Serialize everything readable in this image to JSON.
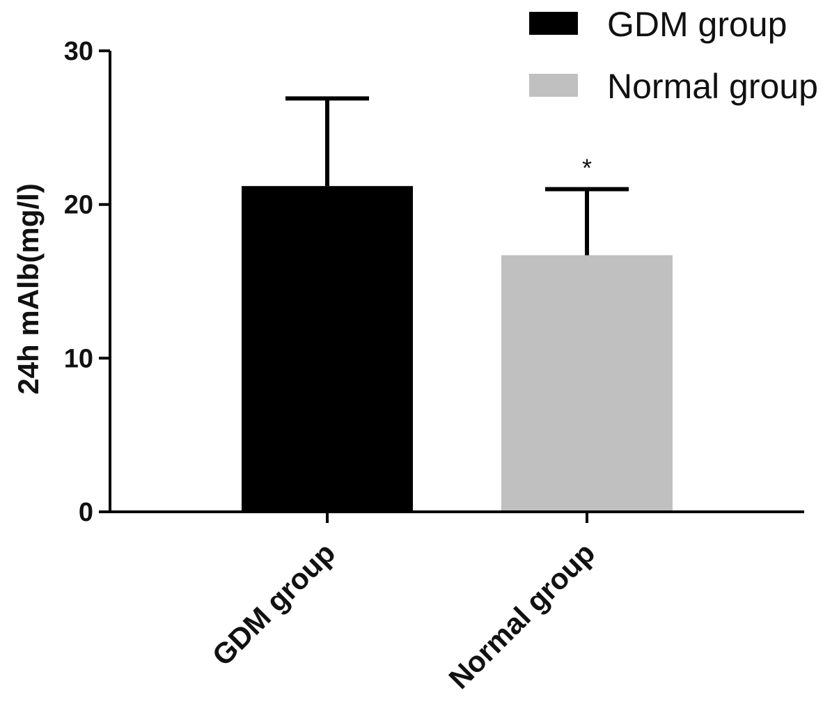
{
  "chart_data": {
    "type": "bar",
    "title": "",
    "xlabel": "",
    "ylabel": "24h mAlb(mg/l)",
    "ylim": [
      0,
      30
    ],
    "yticks": [
      0,
      10,
      20,
      30
    ],
    "categories": [
      "GDM group",
      "Normal group"
    ],
    "values": [
      21.2,
      16.7
    ],
    "error_upper": [
      26.9,
      21.0
    ],
    "annotations": [
      "",
      "*"
    ],
    "colors": [
      "#000000",
      "#c0c0c0"
    ],
    "grid": false,
    "legend": {
      "placement": "top-right",
      "entries": [
        {
          "label": "GDM group",
          "color": "#000000"
        },
        {
          "label": "Normal group",
          "color": "#c0c0c0"
        }
      ]
    }
  }
}
